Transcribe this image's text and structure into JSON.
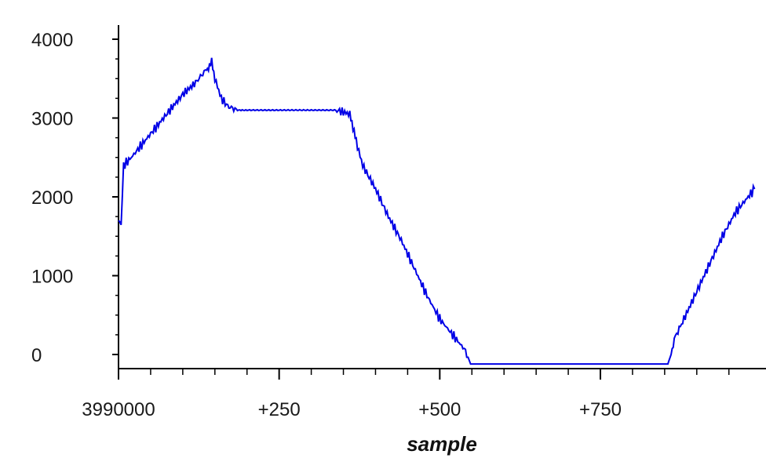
{
  "chart_data": {
    "type": "line",
    "title": "",
    "xlabel": "sample",
    "ylabel": "",
    "x_offset_label": "3990000",
    "xlim": [
      0,
      1000
    ],
    "ylim": [
      -150,
      4100
    ],
    "grid": false,
    "legend": "none",
    "line_color": "#0000e6",
    "x_ticks": [
      {
        "value": 0,
        "label": "3990000"
      },
      {
        "value": 250,
        "label": "+250"
      },
      {
        "value": 500,
        "label": "+500"
      },
      {
        "value": 750,
        "label": "+750"
      }
    ],
    "y_ticks": [
      {
        "value": 0,
        "label": "0"
      },
      {
        "value": 1000,
        "label": "1000"
      },
      {
        "value": 2000,
        "label": "2000"
      },
      {
        "value": 3000,
        "label": "3000"
      },
      {
        "value": 4000,
        "label": "4000"
      }
    ],
    "series": [
      {
        "name": "",
        "x": [
          0,
          4,
          8,
          20,
          40,
          60,
          80,
          100,
          120,
          135,
          140,
          145,
          150,
          160,
          170,
          185,
          200,
          250,
          300,
          340,
          360,
          365,
          370,
          380,
          400,
          420,
          440,
          460,
          480,
          500,
          520,
          540,
          548,
          560,
          600,
          700,
          800,
          855,
          860,
          865,
          880,
          900,
          920,
          940,
          960,
          980,
          990
        ],
        "y": [
          1700,
          1650,
          2400,
          2500,
          2700,
          2900,
          3100,
          3300,
          3450,
          3600,
          3650,
          3700,
          3500,
          3250,
          3150,
          3100,
          3100,
          3100,
          3100,
          3100,
          3050,
          2900,
          2700,
          2400,
          2100,
          1750,
          1450,
          1100,
          750,
          450,
          250,
          50,
          -120,
          -120,
          -120,
          -120,
          -120,
          -120,
          0,
          200,
          450,
          800,
          1150,
          1500,
          1800,
          2000,
          2100
        ]
      }
    ]
  }
}
